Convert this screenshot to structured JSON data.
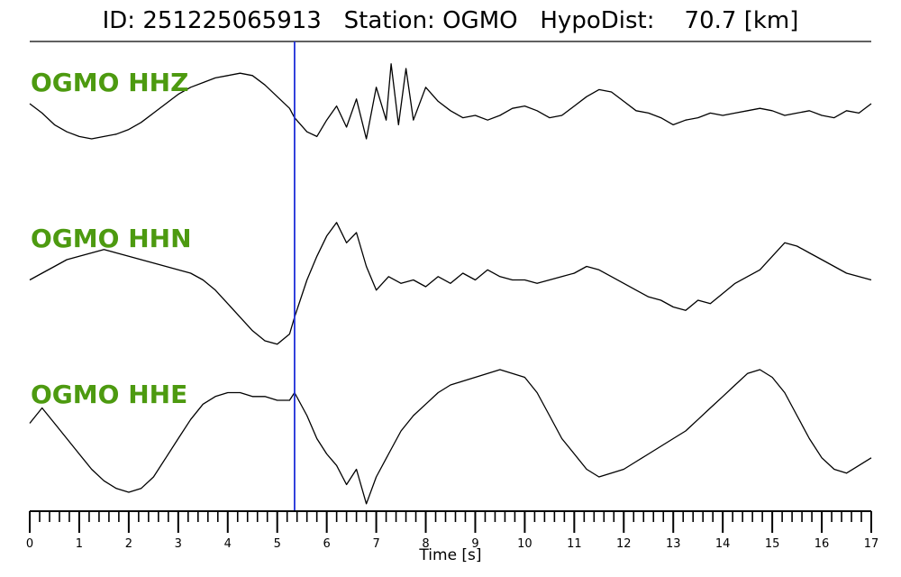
{
  "header": {
    "title": "ID: 251225065913   Station: OGMO   HypoDist:    70.7 [km]"
  },
  "chart_data": {
    "type": "line",
    "xlabel": "Time [s]",
    "xlim": [
      0,
      17
    ],
    "x_ticks": [
      0,
      1,
      2,
      3,
      4,
      5,
      6,
      7,
      8,
      9,
      10,
      11,
      12,
      13,
      14,
      15,
      16,
      17
    ],
    "pick_time": 5.35,
    "pick_color": "#1f2fd8",
    "label_color": "#4d9a10",
    "trace_color": "#000000",
    "series": [
      {
        "name": "OGMO HHZ",
        "x": [
          0,
          0.25,
          0.5,
          0.75,
          1,
          1.25,
          1.5,
          1.75,
          2,
          2.25,
          2.5,
          2.75,
          3,
          3.25,
          3.5,
          3.75,
          4,
          4.25,
          4.5,
          4.75,
          5,
          5.25,
          5.35,
          5.6,
          5.8,
          6,
          6.2,
          6.4,
          6.6,
          6.8,
          7,
          7.2,
          7.3,
          7.45,
          7.6,
          7.75,
          8,
          8.25,
          8.5,
          8.75,
          9,
          9.25,
          9.5,
          9.75,
          10,
          10.25,
          10.5,
          10.75,
          11,
          11.25,
          11.5,
          11.75,
          12,
          12.25,
          12.5,
          12.75,
          13,
          13.25,
          13.5,
          13.75,
          14,
          14.25,
          14.5,
          14.75,
          15,
          15.25,
          15.5,
          15.75,
          16,
          16.25,
          16.5,
          16.75,
          17
        ],
        "y": [
          0.25,
          0.05,
          -0.2,
          -0.35,
          -0.45,
          -0.5,
          -0.45,
          -0.4,
          -0.3,
          -0.15,
          0.05,
          0.25,
          0.45,
          0.6,
          0.7,
          0.8,
          0.85,
          0.9,
          0.85,
          0.65,
          0.4,
          0.15,
          -0.05,
          -0.35,
          -0.45,
          -0.1,
          0.2,
          -0.25,
          0.35,
          -0.5,
          0.6,
          -0.1,
          1.1,
          -0.2,
          1.0,
          -0.1,
          0.6,
          0.3,
          0.1,
          -0.05,
          0.0,
          -0.1,
          0.0,
          0.15,
          0.2,
          0.1,
          -0.05,
          0.0,
          0.2,
          0.4,
          0.55,
          0.5,
          0.3,
          0.1,
          0.05,
          -0.05,
          -0.2,
          -0.1,
          -0.05,
          0.05,
          0.0,
          0.05,
          0.1,
          0.15,
          0.1,
          0.0,
          0.05,
          0.1,
          0.0,
          -0.05,
          0.1,
          0.05,
          0.25
        ]
      },
      {
        "name": "OGMO HHN",
        "x": [
          0,
          0.25,
          0.5,
          0.75,
          1,
          1.25,
          1.5,
          1.75,
          2,
          2.25,
          2.5,
          2.75,
          3,
          3.25,
          3.5,
          3.75,
          4,
          4.25,
          4.5,
          4.75,
          5,
          5.25,
          5.35,
          5.6,
          5.8,
          6,
          6.2,
          6.4,
          6.6,
          6.8,
          7,
          7.25,
          7.5,
          7.75,
          8,
          8.25,
          8.5,
          8.75,
          9,
          9.25,
          9.5,
          9.75,
          10,
          10.25,
          10.5,
          10.75,
          11,
          11.25,
          11.5,
          11.75,
          12,
          12.25,
          12.5,
          12.75,
          13,
          13.25,
          13.5,
          13.75,
          14,
          14.25,
          14.5,
          14.75,
          15,
          15.25,
          15.5,
          15.75,
          16,
          16.25,
          16.5,
          16.75,
          17
        ],
        "y": [
          0.1,
          0.2,
          0.3,
          0.4,
          0.45,
          0.5,
          0.55,
          0.5,
          0.45,
          0.4,
          0.35,
          0.3,
          0.25,
          0.2,
          0.1,
          -0.05,
          -0.25,
          -0.45,
          -0.65,
          -0.8,
          -0.85,
          -0.7,
          -0.45,
          0.1,
          0.45,
          0.75,
          0.95,
          0.65,
          0.8,
          0.3,
          -0.05,
          0.15,
          0.05,
          0.1,
          0.0,
          0.15,
          0.05,
          0.2,
          0.1,
          0.25,
          0.15,
          0.1,
          0.1,
          0.05,
          0.1,
          0.15,
          0.2,
          0.3,
          0.25,
          0.15,
          0.05,
          -0.05,
          -0.15,
          -0.2,
          -0.3,
          -0.35,
          -0.2,
          -0.25,
          -0.1,
          0.05,
          0.15,
          0.25,
          0.45,
          0.65,
          0.6,
          0.5,
          0.4,
          0.3,
          0.2,
          0.15,
          0.1
        ]
      },
      {
        "name": "OGMO HHE",
        "x": [
          0,
          0.25,
          0.5,
          0.75,
          1,
          1.25,
          1.5,
          1.75,
          2,
          2.25,
          2.5,
          2.75,
          3,
          3.25,
          3.5,
          3.75,
          4,
          4.25,
          4.5,
          4.75,
          5,
          5.25,
          5.35,
          5.6,
          5.8,
          6,
          6.2,
          6.4,
          6.6,
          6.8,
          7,
          7.25,
          7.5,
          7.75,
          8,
          8.25,
          8.5,
          8.75,
          9,
          9.25,
          9.5,
          9.75,
          10,
          10.25,
          10.5,
          10.75,
          11,
          11.25,
          11.5,
          11.75,
          12,
          12.25,
          12.5,
          12.75,
          13,
          13.25,
          13.5,
          13.75,
          14,
          14.25,
          14.5,
          14.75,
          15,
          15.25,
          15.5,
          15.75,
          16,
          16.25,
          16.5,
          16.75,
          17
        ],
        "y": [
          0.1,
          0.3,
          0.1,
          -0.1,
          -0.3,
          -0.5,
          -0.65,
          -0.75,
          -0.8,
          -0.75,
          -0.6,
          -0.35,
          -0.1,
          0.15,
          0.35,
          0.45,
          0.5,
          0.5,
          0.45,
          0.45,
          0.4,
          0.4,
          0.5,
          0.2,
          -0.1,
          -0.3,
          -0.45,
          -0.7,
          -0.5,
          -0.95,
          -0.6,
          -0.3,
          0.0,
          0.2,
          0.35,
          0.5,
          0.6,
          0.65,
          0.7,
          0.75,
          0.8,
          0.75,
          0.7,
          0.5,
          0.2,
          -0.1,
          -0.3,
          -0.5,
          -0.6,
          -0.55,
          -0.5,
          -0.4,
          -0.3,
          -0.2,
          -0.1,
          0.0,
          0.15,
          0.3,
          0.45,
          0.6,
          0.75,
          0.8,
          0.7,
          0.5,
          0.2,
          -0.1,
          -0.35,
          -0.5,
          -0.55,
          -0.45,
          -0.35
        ]
      }
    ]
  }
}
